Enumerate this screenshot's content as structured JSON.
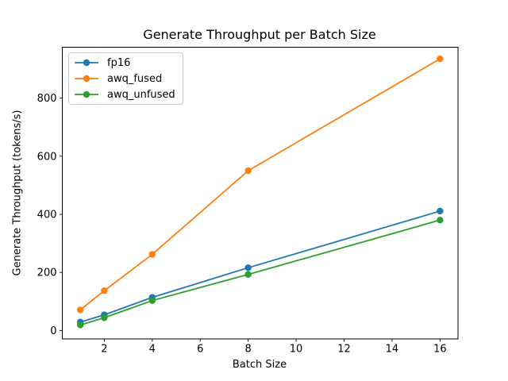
{
  "chart_data": {
    "type": "line",
    "title": "Generate Throughput per Batch Size",
    "xlabel": "Batch Size",
    "ylabel": "Generate Throughput (tokens/s)",
    "x": [
      1,
      2,
      4,
      8,
      16
    ],
    "series": [
      {
        "name": "fp16",
        "color": "#1f77b4",
        "values": [
          29,
          54,
          114,
          216,
          411
        ]
      },
      {
        "name": "awq_fused",
        "color": "#ff7f0e",
        "values": [
          71,
          137,
          262,
          550,
          935
        ]
      },
      {
        "name": "awq_unfused",
        "color": "#2ca02c",
        "values": [
          19,
          44,
          103,
          193,
          380
        ]
      }
    ],
    "xticks": [
      2,
      4,
      6,
      8,
      10,
      12,
      14,
      16
    ],
    "yticks": [
      0,
      200,
      400,
      600,
      800
    ],
    "xlim": [
      0.25,
      16.75
    ],
    "ylim": [
      -29,
      975
    ],
    "grid": false,
    "legend_position": "upper left",
    "marker": "o"
  }
}
